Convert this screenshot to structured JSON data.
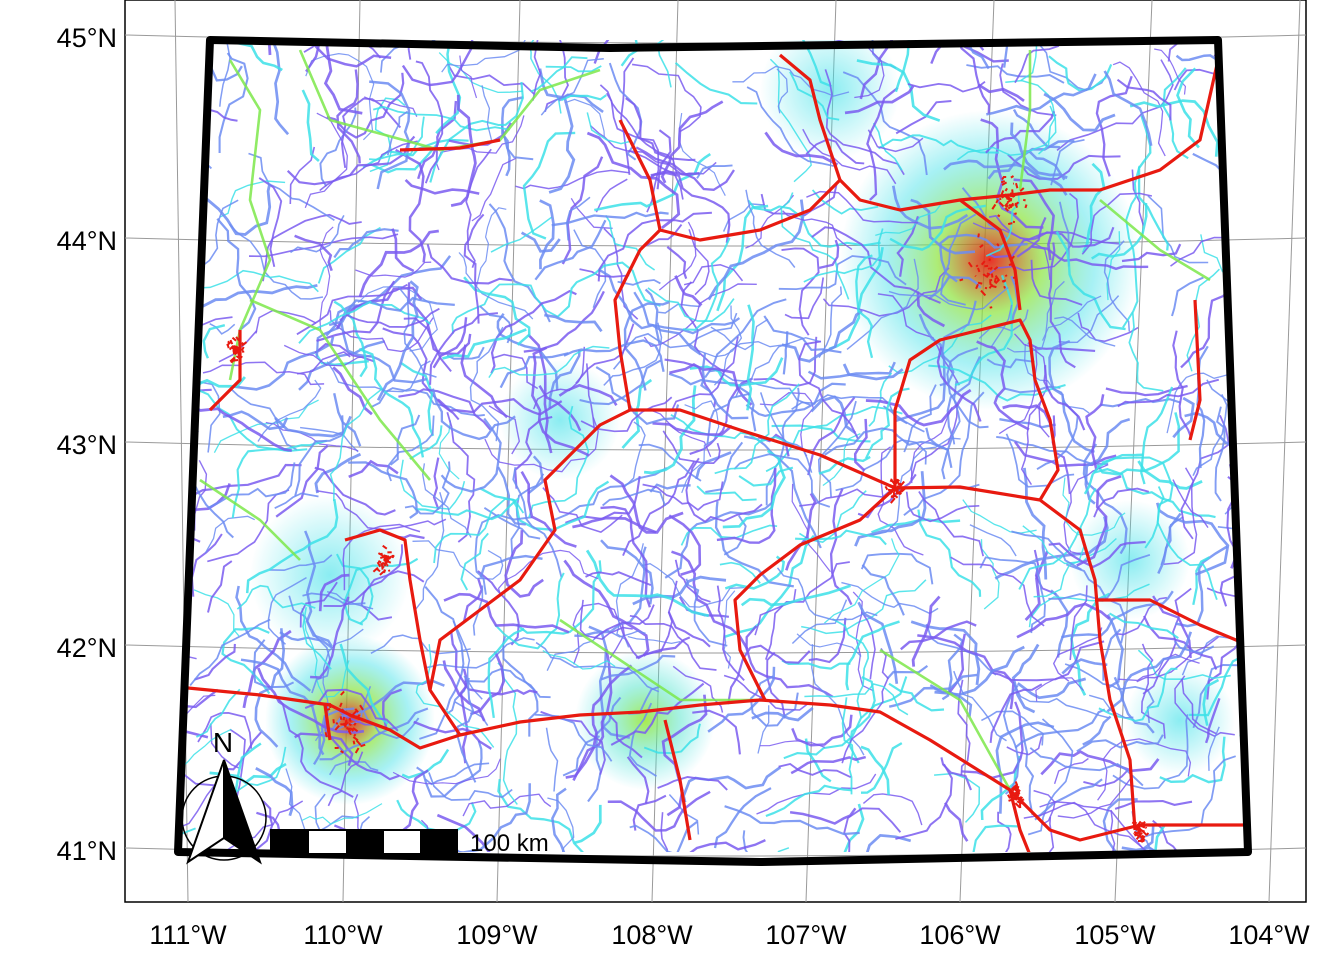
{
  "map": {
    "latitude_labels": [
      "45°N",
      "44°N",
      "43°N",
      "42°N",
      "41°N"
    ],
    "longitude_labels": [
      "111°W",
      "110°W",
      "109°W",
      "108°W",
      "107°W",
      "106°W",
      "105°W",
      "104°W"
    ],
    "scale_bar": {
      "label": "100 km"
    },
    "north_arrow": {
      "label": "N"
    },
    "colors": {
      "border": "#000000",
      "graticule": "#9a9a9a",
      "road_low": "#7a5cf0",
      "road_low_alt": "#6c8cf2",
      "road_mid": "#3ce0e8",
      "road_midhigh": "#7de84a",
      "road_high": "#e81a10",
      "road_orange": "#f09018"
    }
  }
}
